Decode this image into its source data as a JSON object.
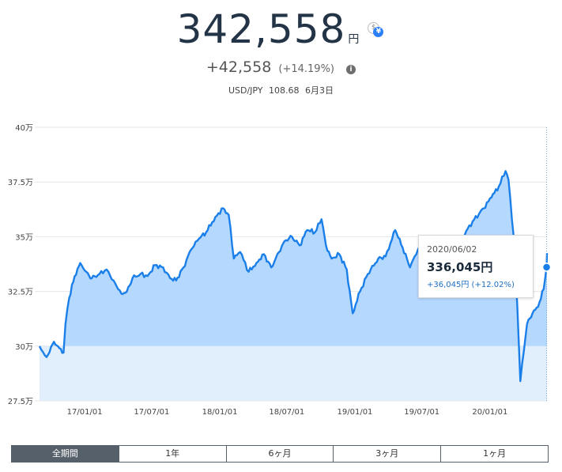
{
  "summary": {
    "amount": "342,558",
    "unit": "円",
    "change": "+42,558",
    "change_pct": "(+14.19%)",
    "rate_label": "USD/JPY",
    "rate_value": "108.68",
    "rate_date": "6月3日"
  },
  "tooltip": {
    "date": "2020/06/02",
    "value": "336,045円",
    "change": "+36,045円 (+12.02%)"
  },
  "range_tabs": [
    "全期間",
    "1年",
    "6ヶ月",
    "3ヶ月",
    "1ヶ月"
  ],
  "active_tab": 0,
  "colors": {
    "line": "#1a7fe8",
    "area_above_baseline": "#b5d8ff",
    "area_below_baseline": "#e1eefc",
    "tab_active": "#56606b"
  },
  "chart_data": {
    "type": "area",
    "y_tick_labels": [
      "27.5万",
      "30万",
      "32.5万",
      "35万",
      "37.5万",
      "40万"
    ],
    "y_ticks": [
      275000,
      300000,
      325000,
      350000,
      375000,
      400000
    ],
    "ylim": [
      275000,
      400000
    ],
    "baseline": 300000,
    "x_tick_labels": [
      "17/01/01",
      "17/07/01",
      "18/01/01",
      "18/07/01",
      "19/01/01",
      "19/07/01",
      "20/01/01"
    ],
    "x_ticks": [
      "2017-01-01",
      "2017-07-01",
      "2018-01-01",
      "2018-07-01",
      "2019-01-01",
      "2019-07-01",
      "2020-01-01"
    ],
    "x_range": [
      "2016-09-01",
      "2020-06-03"
    ],
    "grid": true,
    "highlight": {
      "x": "2020-06-02",
      "y": 336045
    },
    "series": [
      {
        "points": [
          [
            "2016-09-01",
            300000
          ],
          [
            "2016-09-20",
            295000
          ],
          [
            "2016-10-10",
            302000
          ],
          [
            "2016-10-25",
            299000
          ],
          [
            "2016-11-05",
            297000
          ],
          [
            "2016-11-10",
            310000
          ],
          [
            "2016-11-20",
            322000
          ],
          [
            "2016-12-05",
            332000
          ],
          [
            "2016-12-20",
            338000
          ],
          [
            "2017-01-05",
            334000
          ],
          [
            "2017-01-20",
            331000
          ],
          [
            "2017-02-10",
            333000
          ],
          [
            "2017-03-01",
            335000
          ],
          [
            "2017-03-20",
            330000
          ],
          [
            "2017-04-10",
            324000
          ],
          [
            "2017-04-25",
            325000
          ],
          [
            "2017-05-10",
            331000
          ],
          [
            "2017-06-01",
            333000
          ],
          [
            "2017-06-20",
            332000
          ],
          [
            "2017-07-10",
            337000
          ],
          [
            "2017-08-01",
            336000
          ],
          [
            "2017-08-20",
            331000
          ],
          [
            "2017-09-05",
            330000
          ],
          [
            "2017-09-25",
            336000
          ],
          [
            "2017-10-15",
            344000
          ],
          [
            "2017-11-05",
            349000
          ],
          [
            "2017-11-25",
            352000
          ],
          [
            "2017-12-20",
            359000
          ],
          [
            "2018-01-10",
            363000
          ],
          [
            "2018-01-25",
            360000
          ],
          [
            "2018-02-08",
            340000
          ],
          [
            "2018-02-25",
            343000
          ],
          [
            "2018-03-20",
            334000
          ],
          [
            "2018-04-10",
            338000
          ],
          [
            "2018-04-30",
            342000
          ],
          [
            "2018-05-20",
            336000
          ],
          [
            "2018-06-10",
            343000
          ],
          [
            "2018-06-25",
            348000
          ],
          [
            "2018-07-15",
            350000
          ],
          [
            "2018-08-05",
            346000
          ],
          [
            "2018-08-25",
            353000
          ],
          [
            "2018-09-15",
            352000
          ],
          [
            "2018-10-03",
            358000
          ],
          [
            "2018-10-15",
            346000
          ],
          [
            "2018-10-30",
            340000
          ],
          [
            "2018-11-20",
            342000
          ],
          [
            "2018-12-10",
            335000
          ],
          [
            "2018-12-26",
            315000
          ],
          [
            "2019-01-15",
            325000
          ],
          [
            "2019-02-05",
            333000
          ],
          [
            "2019-03-05",
            340000
          ],
          [
            "2019-03-25",
            341000
          ],
          [
            "2019-04-20",
            353000
          ],
          [
            "2019-05-10",
            345000
          ],
          [
            "2019-05-30",
            336000
          ],
          [
            "2019-06-20",
            344000
          ],
          [
            "2019-07-20",
            350000
          ],
          [
            "2019-08-10",
            338000
          ],
          [
            "2019-08-25",
            340000
          ],
          [
            "2019-09-20",
            346000
          ],
          [
            "2019-10-20",
            350000
          ],
          [
            "2019-11-15",
            357000
          ],
          [
            "2019-12-15",
            363000
          ],
          [
            "2020-01-05",
            368000
          ],
          [
            "2020-01-25",
            373000
          ],
          [
            "2020-02-12",
            380000
          ],
          [
            "2020-02-20",
            376000
          ],
          [
            "2020-03-05",
            350000
          ],
          [
            "2020-03-15",
            318000
          ],
          [
            "2020-03-23",
            284000
          ],
          [
            "2020-04-01",
            297000
          ],
          [
            "2020-04-10",
            310000
          ],
          [
            "2020-04-25",
            315000
          ],
          [
            "2020-05-10",
            318000
          ],
          [
            "2020-05-25",
            326000
          ],
          [
            "2020-06-02",
            336045
          ],
          [
            "2020-06-03",
            342558
          ]
        ]
      }
    ]
  }
}
